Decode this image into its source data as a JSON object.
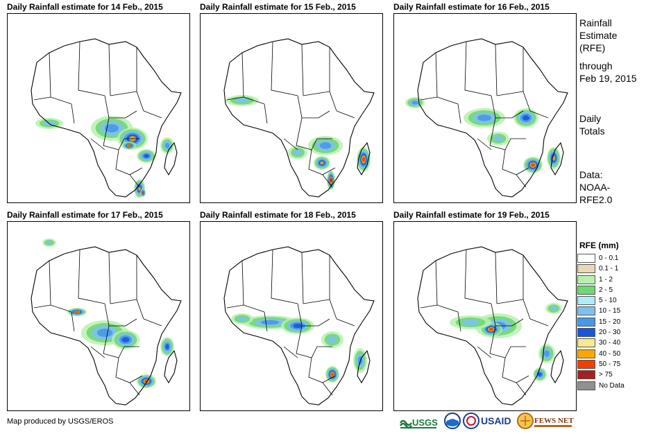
{
  "panels": [
    {
      "title": "Daily Rainfall estimate for 14 Feb., 2015"
    },
    {
      "title": "Daily Rainfall estimate for 15 Feb., 2015"
    },
    {
      "title": "Daily Rainfall estimate for 16 Feb., 2015"
    },
    {
      "title": "Daily Rainfall estimate for 17 Feb., 2015"
    },
    {
      "title": "Daily Rainfall estimate for 18 Feb., 2015"
    },
    {
      "title": "Daily Rainfall estimate for 19 Feb., 2015"
    }
  ],
  "side": {
    "heading_line1": "Rainfall",
    "heading_line2": "Estimate",
    "heading_line3": "(RFE)",
    "through_line1": "through",
    "through_line2": "Feb 19, 2015",
    "daily_line1": "Daily",
    "daily_line2": "Totals",
    "data_line1": "Data:",
    "data_line2": "NOAA-",
    "data_line3": "RFE2.0"
  },
  "legend": {
    "title": "RFE (mm)",
    "items": [
      {
        "label": "0 - 0.1",
        "color": "#ffffff"
      },
      {
        "label": "0.1 - 1",
        "color": "#e8d8b8"
      },
      {
        "label": "1 - 2",
        "color": "#b8f0b0"
      },
      {
        "label": "2 - 5",
        "color": "#70d870"
      },
      {
        "label": "5 - 10",
        "color": "#b0ecf8"
      },
      {
        "label": "10 - 15",
        "color": "#80c0f0"
      },
      {
        "label": "15 - 20",
        "color": "#4898e8"
      },
      {
        "label": "20 - 30",
        "color": "#1858d8"
      },
      {
        "label": "30 - 40",
        "color": "#f8e890"
      },
      {
        "label": "40 - 50",
        "color": "#f8a800"
      },
      {
        "label": "50 - 75",
        "color": "#f04000"
      },
      {
        "label": "> 75",
        "color": "#a82020"
      },
      {
        "label": "No Data",
        "color": "#909090"
      }
    ]
  },
  "credit": "Map produced by USGS/EROS",
  "logos": {
    "usgs": "USGS",
    "noaa": "NOAA",
    "usaid": "USAID",
    "fews": "FEWS NET"
  }
}
